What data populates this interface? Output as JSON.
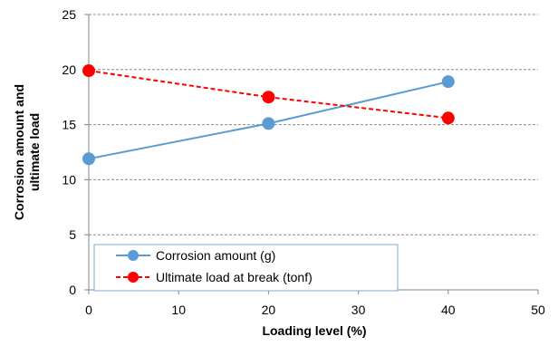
{
  "chart_data": {
    "type": "line",
    "xlabel": "Loading level (%)",
    "ylabel_lines": [
      "Corrosion amount and",
      "ultimate load"
    ],
    "xlim": [
      0,
      50
    ],
    "ylim": [
      0,
      25
    ],
    "x_ticks": [
      0,
      10,
      20,
      30,
      40,
      50
    ],
    "y_ticks": [
      0,
      5,
      10,
      15,
      20,
      25
    ],
    "grid": "horizontal-dashed",
    "legend_position": "bottom-left",
    "series": [
      {
        "name": "Corrosion amount (g)",
        "color": "#5b9bd5",
        "line_style": "solid",
        "x": [
          0,
          20,
          40
        ],
        "y": [
          11.9,
          15.1,
          18.9
        ]
      },
      {
        "name": "Ultimate load at break (tonf)",
        "color": "#ff0000",
        "line_style": "dashed",
        "x": [
          0,
          20,
          40
        ],
        "y": [
          19.9,
          17.5,
          15.6
        ]
      }
    ]
  }
}
